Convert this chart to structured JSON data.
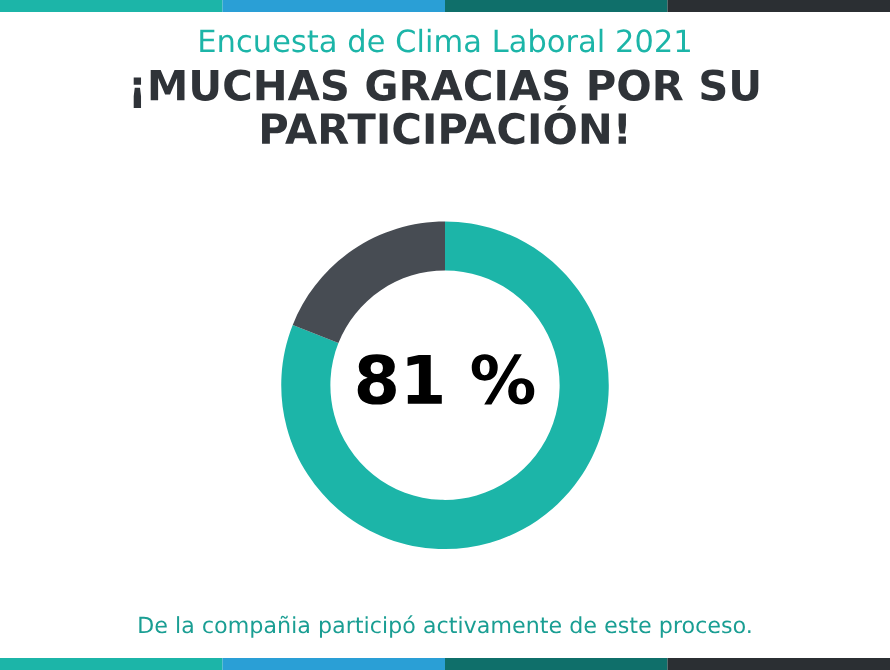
{
  "chart_data": {
    "type": "donut",
    "title": "Encuesta de Clima Laboral 2021",
    "subtitle": "¡MUCHAS GRACIAS POR SU PARTICIPACIÓN!",
    "categories": [
      null,
      null
    ],
    "values": [
      81,
      19
    ],
    "colors": [
      "#1cb5a8",
      "#474c53"
    ],
    "value_labels": [
      "81 %",
      null
    ],
    "annotations": [
      "De la compañia participó activamente de este proceso."
    ]
  }
}
